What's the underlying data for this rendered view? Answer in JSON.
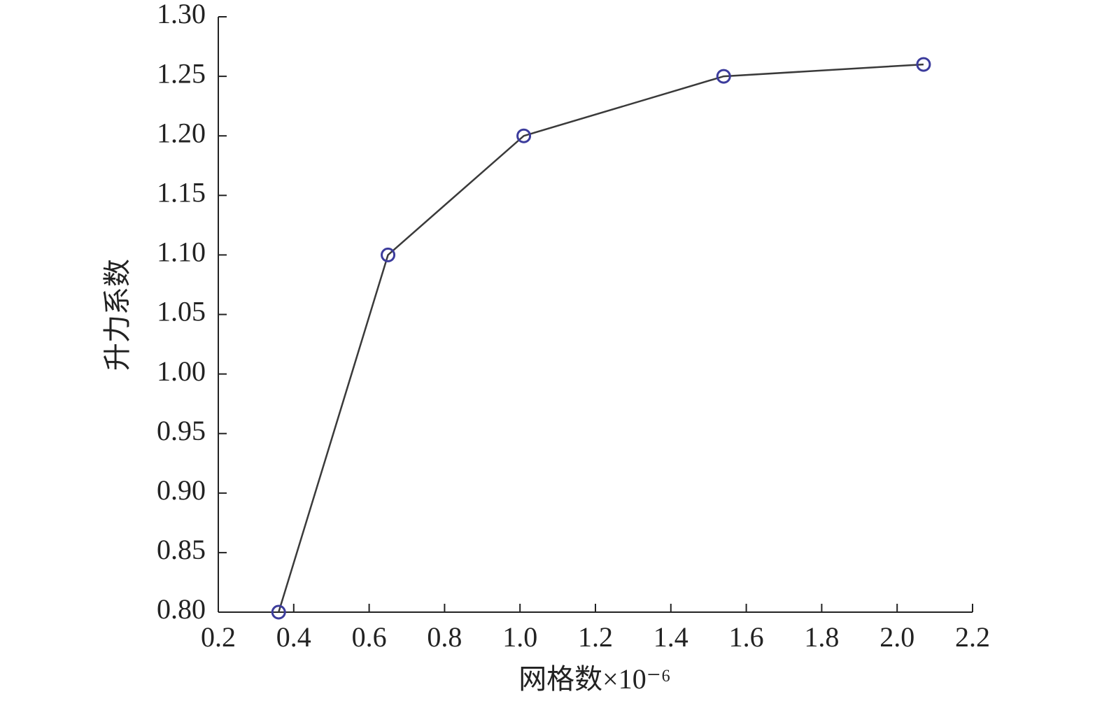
{
  "chart_data": {
    "type": "line",
    "x_label": "网格数×10⁻⁶",
    "y_label": "升力系数",
    "x": [
      0.36,
      0.65,
      1.01,
      1.54,
      2.07
    ],
    "values": [
      0.8,
      1.1,
      1.2,
      1.25,
      1.26
    ],
    "color": "#3a3a3a",
    "marker_color": "#3c3c9c",
    "xlim": [
      0.2,
      2.2
    ],
    "xticks": [
      0.2,
      0.4,
      0.6,
      0.8,
      {
        "value": 1,
        "label": "1.0"
      },
      1.2,
      1.4,
      1.6,
      1.8,
      {
        "value": 2,
        "label": "2.0"
      },
      2.2
    ],
    "ylim": [
      0.8,
      1.3
    ],
    "yticks": [
      {
        "value": 0.8,
        "label": "0.80"
      },
      {
        "value": 0.85,
        "label": "0.85"
      },
      {
        "value": 0.9,
        "label": "0.90"
      },
      {
        "value": 0.95,
        "label": "0.95"
      },
      {
        "value": 1,
        "label": "1.00"
      },
      {
        "value": 1.05,
        "label": "1.05"
      },
      {
        "value": 1.1,
        "label": "1.10"
      },
      {
        "value": 1.15,
        "label": "1.15"
      },
      {
        "value": 1.2,
        "label": "1.20"
      },
      {
        "value": 1.25,
        "label": "1.25"
      },
      {
        "value": 1.3,
        "label": "1.30"
      }
    ]
  }
}
